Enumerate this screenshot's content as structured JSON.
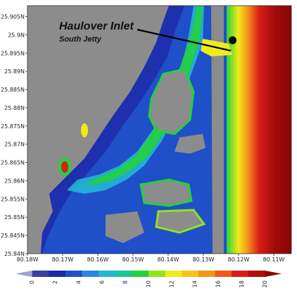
{
  "annotation": {
    "title": "Haulover Inlet",
    "subtitle": "South Jetty"
  },
  "chart_data": {
    "type": "heatmap",
    "xlabel": "",
    "ylabel": "",
    "xlim": [
      -80.18,
      -80.105
    ],
    "ylim": [
      25.84,
      25.908
    ],
    "x_ticks": [
      {
        "value": -80.18,
        "label": "80.18W"
      },
      {
        "value": -80.17,
        "label": "80.17W"
      },
      {
        "value": -80.16,
        "label": "80.16W"
      },
      {
        "value": -80.15,
        "label": "80.15W"
      },
      {
        "value": -80.14,
        "label": "80.14W"
      },
      {
        "value": -80.13,
        "label": "80.13W"
      },
      {
        "value": -80.12,
        "label": "80.12W"
      },
      {
        "value": -80.11,
        "label": "80.11W"
      }
    ],
    "y_ticks": [
      {
        "value": 25.84,
        "label": "25.84N"
      },
      {
        "value": 25.845,
        "label": "25.845N"
      },
      {
        "value": 25.85,
        "label": "25.85N"
      },
      {
        "value": 25.855,
        "label": "25.855N"
      },
      {
        "value": 25.86,
        "label": "25.86N"
      },
      {
        "value": 25.865,
        "label": "25.865N"
      },
      {
        "value": 25.87,
        "label": "25.87N"
      },
      {
        "value": 25.875,
        "label": "25.875N"
      },
      {
        "value": 25.88,
        "label": "25.88N"
      },
      {
        "value": 25.885,
        "label": "25.885N"
      },
      {
        "value": 25.89,
        "label": "25.89N"
      },
      {
        "value": 25.895,
        "label": "25.895N"
      },
      {
        "value": 25.9,
        "label": "25.9N"
      },
      {
        "value": 25.905,
        "label": "25.905N"
      }
    ],
    "colorbar": {
      "min": 0,
      "max": 20,
      "ticks": [
        "0",
        "2",
        "4",
        "6",
        "8",
        "10",
        "12",
        "14",
        "16",
        "18",
        "20"
      ],
      "colors": [
        "#9fa0d6",
        "#3b3f9e",
        "#1e2aa8",
        "#1f4fc9",
        "#2b86e0",
        "#22b5d4",
        "#1cc49a",
        "#22d23c",
        "#8fe51b",
        "#f0ea19",
        "#f7c31a",
        "#f5961c",
        "#ee5a1b",
        "#d81e17",
        "#b00d0d",
        "#8a0606"
      ]
    },
    "marker": {
      "lon": -80.1217,
      "lat": 25.8985,
      "label": "South Jetty"
    },
    "land_color": "#8c8c8c",
    "grid": false
  }
}
